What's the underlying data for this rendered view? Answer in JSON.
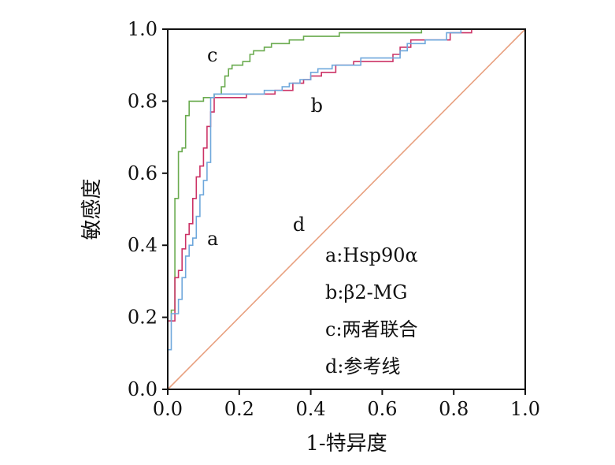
{
  "chart_data": {
    "type": "line",
    "xlabel": "1-特异度",
    "ylabel": "敏感度",
    "xlim": [
      0,
      1
    ],
    "ylim": [
      0,
      1
    ],
    "x_ticks": [
      "0.0",
      "0.2",
      "0.4",
      "0.6",
      "0.8",
      "1.0"
    ],
    "y_ticks": [
      "0.0",
      "0.2",
      "0.4",
      "0.6",
      "0.8",
      "1.0"
    ],
    "grid": false,
    "legend_position": "bottom-right",
    "legend": [
      {
        "key": "a",
        "text": "a:Hsp90α"
      },
      {
        "key": "b",
        "text": "b:β2-MG"
      },
      {
        "key": "c",
        "text": "c:两者联合"
      },
      {
        "key": "d",
        "text": "d:参考线"
      }
    ],
    "series": [
      {
        "key": "c",
        "label": "c",
        "color": "#6aab4f",
        "label_at": [
          0.11,
          0.91
        ],
        "points": [
          [
            0,
            0
          ],
          [
            0,
            0.19
          ],
          [
            0.01,
            0.19
          ],
          [
            0.01,
            0.22
          ],
          [
            0.02,
            0.22
          ],
          [
            0.02,
            0.53
          ],
          [
            0.03,
            0.53
          ],
          [
            0.03,
            0.66
          ],
          [
            0.04,
            0.66
          ],
          [
            0.04,
            0.67
          ],
          [
            0.05,
            0.67
          ],
          [
            0.05,
            0.76
          ],
          [
            0.06,
            0.76
          ],
          [
            0.06,
            0.8
          ],
          [
            0.1,
            0.8
          ],
          [
            0.1,
            0.81
          ],
          [
            0.13,
            0.81
          ],
          [
            0.13,
            0.82
          ],
          [
            0.15,
            0.82
          ],
          [
            0.15,
            0.84
          ],
          [
            0.16,
            0.84
          ],
          [
            0.16,
            0.87
          ],
          [
            0.17,
            0.87
          ],
          [
            0.17,
            0.89
          ],
          [
            0.18,
            0.89
          ],
          [
            0.18,
            0.9
          ],
          [
            0.21,
            0.9
          ],
          [
            0.21,
            0.91
          ],
          [
            0.23,
            0.91
          ],
          [
            0.23,
            0.93
          ],
          [
            0.24,
            0.93
          ],
          [
            0.24,
            0.94
          ],
          [
            0.27,
            0.94
          ],
          [
            0.27,
            0.95
          ],
          [
            0.29,
            0.95
          ],
          [
            0.29,
            0.96
          ],
          [
            0.34,
            0.96
          ],
          [
            0.34,
            0.97
          ],
          [
            0.38,
            0.97
          ],
          [
            0.38,
            0.98
          ],
          [
            0.48,
            0.98
          ],
          [
            0.48,
            0.99
          ],
          [
            0.71,
            0.99
          ],
          [
            0.71,
            1.0
          ],
          [
            1.0,
            1.0
          ]
        ]
      },
      {
        "key": "a",
        "label": "a",
        "color": "#cc3366",
        "label_at": [
          0.11,
          0.4
        ],
        "points": [
          [
            0,
            0
          ],
          [
            0,
            0.19
          ],
          [
            0.02,
            0.19
          ],
          [
            0.02,
            0.31
          ],
          [
            0.03,
            0.31
          ],
          [
            0.03,
            0.33
          ],
          [
            0.04,
            0.33
          ],
          [
            0.04,
            0.39
          ],
          [
            0.05,
            0.39
          ],
          [
            0.05,
            0.43
          ],
          [
            0.06,
            0.43
          ],
          [
            0.06,
            0.46
          ],
          [
            0.07,
            0.46
          ],
          [
            0.07,
            0.53
          ],
          [
            0.08,
            0.53
          ],
          [
            0.08,
            0.59
          ],
          [
            0.09,
            0.59
          ],
          [
            0.09,
            0.62
          ],
          [
            0.1,
            0.62
          ],
          [
            0.1,
            0.67
          ],
          [
            0.11,
            0.67
          ],
          [
            0.11,
            0.73
          ],
          [
            0.12,
            0.73
          ],
          [
            0.12,
            0.77
          ],
          [
            0.13,
            0.77
          ],
          [
            0.13,
            0.81
          ],
          [
            0.22,
            0.81
          ],
          [
            0.22,
            0.82
          ],
          [
            0.3,
            0.82
          ],
          [
            0.3,
            0.83
          ],
          [
            0.35,
            0.83
          ],
          [
            0.35,
            0.85
          ],
          [
            0.38,
            0.85
          ],
          [
            0.38,
            0.86
          ],
          [
            0.4,
            0.86
          ],
          [
            0.4,
            0.87
          ],
          [
            0.43,
            0.87
          ],
          [
            0.43,
            0.88
          ],
          [
            0.47,
            0.88
          ],
          [
            0.47,
            0.9
          ],
          [
            0.52,
            0.9
          ],
          [
            0.52,
            0.91
          ],
          [
            0.63,
            0.91
          ],
          [
            0.63,
            0.93
          ],
          [
            0.65,
            0.93
          ],
          [
            0.65,
            0.95
          ],
          [
            0.68,
            0.95
          ],
          [
            0.68,
            0.97
          ],
          [
            0.79,
            0.97
          ],
          [
            0.79,
            0.99
          ],
          [
            0.85,
            0.99
          ],
          [
            0.85,
            1.0
          ],
          [
            1.0,
            1.0
          ]
        ]
      },
      {
        "key": "b",
        "label": "b",
        "color": "#6fa8dc",
        "label_at": [
          0.4,
          0.77
        ],
        "points": [
          [
            0,
            0
          ],
          [
            0,
            0.11
          ],
          [
            0.01,
            0.11
          ],
          [
            0.01,
            0.21
          ],
          [
            0.03,
            0.21
          ],
          [
            0.03,
            0.25
          ],
          [
            0.04,
            0.25
          ],
          [
            0.04,
            0.31
          ],
          [
            0.05,
            0.31
          ],
          [
            0.05,
            0.37
          ],
          [
            0.06,
            0.37
          ],
          [
            0.06,
            0.4
          ],
          [
            0.07,
            0.4
          ],
          [
            0.07,
            0.42
          ],
          [
            0.08,
            0.42
          ],
          [
            0.08,
            0.48
          ],
          [
            0.09,
            0.48
          ],
          [
            0.09,
            0.54
          ],
          [
            0.1,
            0.54
          ],
          [
            0.1,
            0.58
          ],
          [
            0.11,
            0.58
          ],
          [
            0.11,
            0.63
          ],
          [
            0.12,
            0.63
          ],
          [
            0.12,
            0.81
          ],
          [
            0.13,
            0.81
          ],
          [
            0.13,
            0.82
          ],
          [
            0.27,
            0.82
          ],
          [
            0.27,
            0.83
          ],
          [
            0.32,
            0.83
          ],
          [
            0.32,
            0.84
          ],
          [
            0.34,
            0.84
          ],
          [
            0.34,
            0.85
          ],
          [
            0.37,
            0.85
          ],
          [
            0.37,
            0.86
          ],
          [
            0.4,
            0.86
          ],
          [
            0.4,
            0.88
          ],
          [
            0.42,
            0.88
          ],
          [
            0.42,
            0.89
          ],
          [
            0.46,
            0.89
          ],
          [
            0.46,
            0.9
          ],
          [
            0.54,
            0.9
          ],
          [
            0.54,
            0.92
          ],
          [
            0.65,
            0.92
          ],
          [
            0.65,
            0.94
          ],
          [
            0.67,
            0.94
          ],
          [
            0.67,
            0.96
          ],
          [
            0.72,
            0.96
          ],
          [
            0.72,
            0.97
          ],
          [
            0.78,
            0.97
          ],
          [
            0.78,
            0.99
          ],
          [
            0.82,
            0.99
          ],
          [
            0.82,
            1.0
          ],
          [
            1.0,
            1.0
          ]
        ]
      },
      {
        "key": "d",
        "label": "d",
        "color": "#e8a07f",
        "label_at": [
          0.35,
          0.44
        ],
        "points": [
          [
            0,
            0
          ],
          [
            1,
            1
          ]
        ]
      }
    ]
  }
}
